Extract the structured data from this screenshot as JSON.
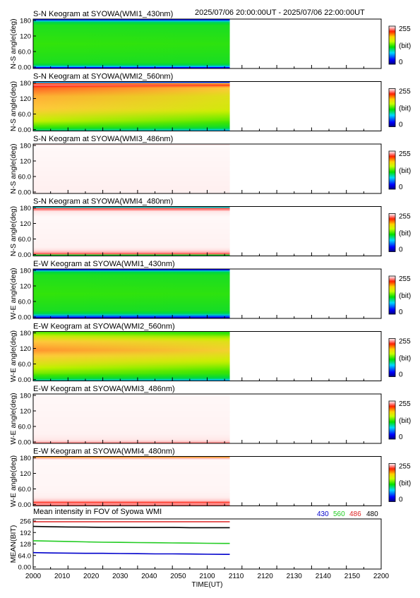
{
  "header": {
    "time_range": "2025/07/06 20:00:00UT - 2025/07/06 22:00:00UT"
  },
  "chart_data": {
    "type": "heatmap",
    "x_axis": {
      "label": "TIME(UT)",
      "range": [
        2000,
        2200
      ],
      "ticks": [
        "2000",
        "2010",
        "2020",
        "2030",
        "2040",
        "2050",
        "2100",
        "2110",
        "2120",
        "2130",
        "2140",
        "2150",
        "2200"
      ],
      "data_end": 2113
    },
    "colorbar": {
      "min_label": "0",
      "max_label": "255",
      "unit": "(bit)",
      "scale": "rainbow"
    },
    "panels": [
      {
        "title": "S-N Keogram at SYOWA(WMI1_430nm)",
        "ylabel": "N-S angle(deg)",
        "yticks": [
          "180",
          "120",
          "60.0",
          "0.00"
        ],
        "profile": [
          [
            0,
            0.08
          ],
          [
            0.02,
            0.2
          ],
          [
            0.06,
            0.38
          ],
          [
            0.12,
            0.46
          ],
          [
            0.5,
            0.5
          ],
          [
            0.88,
            0.46
          ],
          [
            0.95,
            0.36
          ],
          [
            1,
            0.12
          ]
        ],
        "time_trend": -0.01
      },
      {
        "title": "S-N Keogram at SYOWA(WMI2_560nm)",
        "ylabel": "N-S angle(deg)",
        "yticks": [
          "180",
          "120",
          "60.0",
          "0.00"
        ],
        "profile": [
          [
            0,
            0.32
          ],
          [
            0.03,
            0.42
          ],
          [
            0.08,
            0.52
          ],
          [
            0.2,
            0.62
          ],
          [
            0.45,
            0.72
          ],
          [
            0.7,
            0.74
          ],
          [
            0.88,
            0.8
          ],
          [
            0.95,
            0.95
          ],
          [
            1,
            0
          ]
        ],
        "time_trend": -0.08
      },
      {
        "title": "S-N Keogram at SYOWA(WMI3_486nm)",
        "ylabel": "N-S angle(deg)",
        "yticks": [
          "180",
          "120",
          "60.0",
          "0.00"
        ],
        "profile": [
          [
            0,
            0.985
          ],
          [
            0.9,
            1
          ],
          [
            0.96,
            1.06
          ],
          [
            1,
            0.92
          ]
        ],
        "time_trend": 0
      },
      {
        "title": "S-N Keogram at SYOWA(WMI4_480nm)",
        "ylabel": "N-S angle(deg)",
        "yticks": [
          "180",
          "120",
          "60.0",
          "0.00"
        ],
        "profile": [
          [
            0,
            0
          ],
          [
            0.03,
            0.86
          ],
          [
            0.08,
            0.95
          ],
          [
            0.18,
            0.99
          ],
          [
            0.8,
            1
          ],
          [
            0.9,
            0.97
          ],
          [
            0.96,
            0.88
          ],
          [
            1,
            0
          ]
        ],
        "time_trend": 0
      },
      {
        "title": "E-W Keogram at SYOWA(WMI1_430nm)",
        "ylabel": "W-E angle(deg)",
        "yticks": [
          "180",
          "120",
          "60.0",
          "0.00"
        ],
        "profile": [
          [
            0,
            0.08
          ],
          [
            0.03,
            0.18
          ],
          [
            0.08,
            0.36
          ],
          [
            0.15,
            0.45
          ],
          [
            0.5,
            0.5
          ],
          [
            0.88,
            0.46
          ],
          [
            0.95,
            0.38
          ],
          [
            1,
            0.1
          ]
        ],
        "time_trend": -0.01
      },
      {
        "title": "E-W Keogram at SYOWA(WMI2_560nm)",
        "ylabel": "W-E angle(deg)",
        "yticks": [
          "180",
          "120",
          "60.0",
          "0.00"
        ],
        "profile": [
          [
            0,
            0.3
          ],
          [
            0.05,
            0.44
          ],
          [
            0.15,
            0.56
          ],
          [
            0.35,
            0.66
          ],
          [
            0.62,
            0.76
          ],
          [
            0.8,
            0.72
          ],
          [
            0.9,
            0.64
          ],
          [
            1,
            0.52
          ]
        ],
        "time_trend": -0.06
      },
      {
        "title": "E-W Keogram at SYOWA(WMI3_486nm)",
        "ylabel": "W-E angle(deg)",
        "yticks": [
          "180",
          "120",
          "60.0",
          "0.00"
        ],
        "profile": [
          [
            0,
            0.9
          ],
          [
            0.03,
            0.95
          ],
          [
            0.08,
            0.975
          ],
          [
            0.2,
            0.99
          ],
          [
            1,
            1
          ]
        ],
        "time_trend": 0
      },
      {
        "title": "E-W Keogram at SYOWA(WMI4_480nm)",
        "ylabel": "W-E angle(deg)",
        "yticks": [
          "180",
          "120",
          "60.0",
          "0.00"
        ],
        "profile": [
          [
            0,
            0.88
          ],
          [
            0.04,
            0.93
          ],
          [
            0.07,
            0.86
          ],
          [
            0.1,
            0.95
          ],
          [
            0.18,
            0.985
          ],
          [
            0.3,
            0.995
          ],
          [
            0.95,
            1
          ],
          [
            1,
            0.65
          ]
        ],
        "time_trend": 0
      }
    ],
    "mean_panel": {
      "title": "Mean intensity in FOV of Syowa WMI",
      "ylabel": "MEAN(BIT)",
      "yticks": [
        "256",
        "192",
        "128",
        "64.0",
        "0.00"
      ],
      "ylim": [
        0,
        256
      ],
      "series": [
        {
          "name": "430",
          "color": "#0000cc",
          "x": [
            2000,
            2010,
            2020,
            2030,
            2040,
            2050,
            2060,
            2070,
            2080,
            2090,
            2100,
            2110,
            2113
          ],
          "y": [
            80,
            78,
            77,
            76,
            76,
            75,
            74,
            73,
            73,
            72,
            71,
            70,
            70
          ]
        },
        {
          "name": "560",
          "color": "#22cc22",
          "x": [
            2000,
            2010,
            2020,
            2030,
            2040,
            2050,
            2060,
            2070,
            2080,
            2090,
            2100,
            2110,
            2113
          ],
          "y": [
            146,
            144,
            142,
            140,
            138,
            137,
            136,
            135,
            134,
            133,
            132,
            131,
            131
          ]
        },
        {
          "name": "486",
          "color": "#dd2222",
          "x": [
            2000,
            2010,
            2020,
            2030,
            2040,
            2050,
            2060,
            2070,
            2080,
            2090,
            2100,
            2110,
            2113
          ],
          "y": [
            252,
            252,
            252,
            252,
            252,
            252,
            252,
            252,
            252,
            252,
            252,
            252,
            252
          ]
        },
        {
          "name": "480",
          "color": "#000000",
          "x": [
            2000,
            2010,
            2020,
            2030,
            2040,
            2050,
            2060,
            2070,
            2080,
            2090,
            2100,
            2110,
            2113
          ],
          "y": [
            226,
            224,
            223,
            222,
            221,
            221,
            220,
            220,
            220,
            219,
            219,
            219,
            219
          ]
        }
      ]
    }
  }
}
